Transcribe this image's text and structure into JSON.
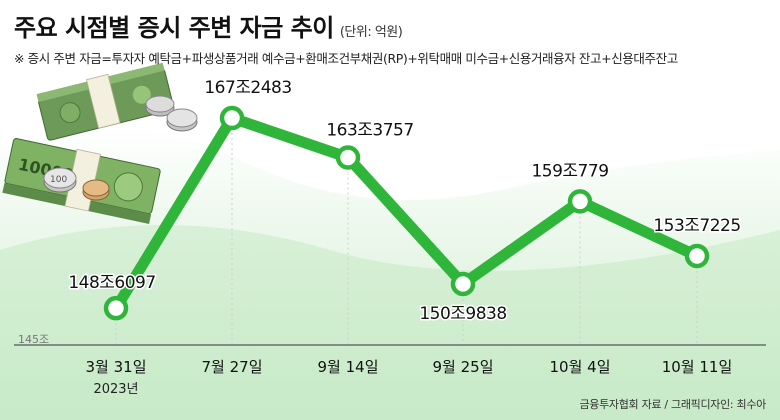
{
  "header": {
    "title": "주요 시점별 증시 주변 자금 추이",
    "unit": "(단위: 억원)",
    "note": "※ 증시 주변 자금=투자자 예탁금+파생상품거래 예수금+환매조건부채권(RP)+위탁매매 미수금+신용거래융자 잔고+신용대주잔고"
  },
  "footer": {
    "source": "금융투자협회 자료 / 그래픽디자인: 최수아"
  },
  "colors": {
    "line": "#2fb53a",
    "marker_fill": "#ffffff",
    "gridline": "#cfcfcf",
    "baseline": "#555555",
    "background_green": "#c9ebc9"
  },
  "decoration": {
    "icon": "money-stack-and-coins-icon",
    "banknote_text": "10000",
    "coin_text": "100"
  },
  "chart_data": {
    "type": "line",
    "categories": [
      "3월 31일",
      "7월 27일",
      "9월 14일",
      "9월 25일",
      "10월 4일",
      "10월 11일"
    ],
    "year_label": "2023년",
    "values": [
      1486097,
      1672483,
      1633757,
      1509838,
      1590779,
      1537225
    ],
    "data_labels": [
      "148조6097",
      "167조2483",
      "163조3757",
      "150조9838",
      "159조779",
      "153조7225"
    ],
    "y_axis_label": "145조",
    "ylim": [
      1450000,
      1700000
    ],
    "grid": "vertical dotted",
    "legend": "none"
  }
}
